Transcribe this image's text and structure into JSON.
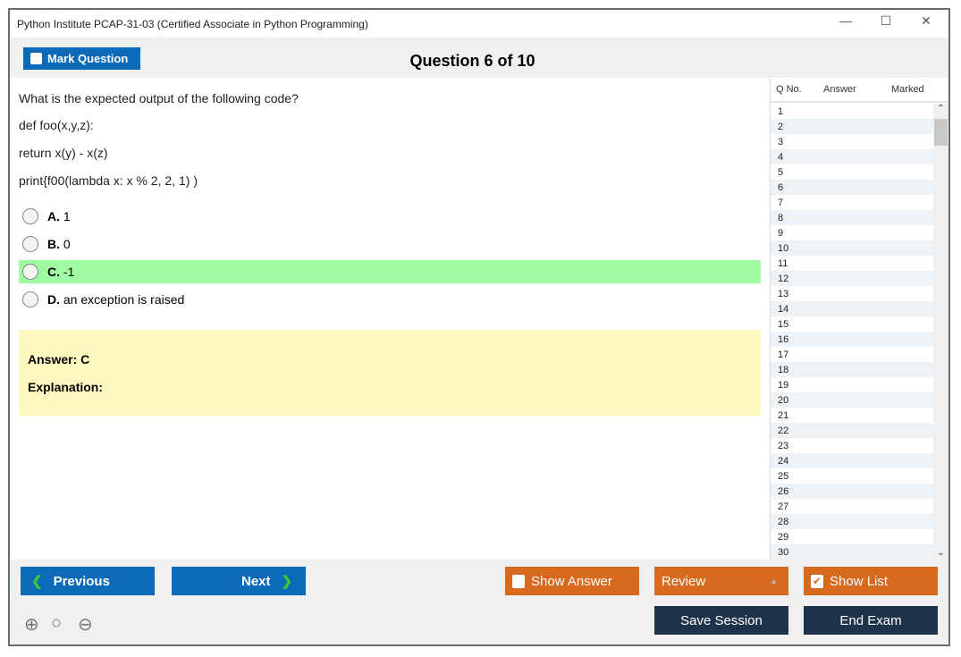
{
  "window": {
    "title": "Python Institute PCAP-31-03 (Certified Associate in Python Programming)",
    "minimize": "—",
    "maximize": "☐",
    "close": "✕"
  },
  "header": {
    "mark_label": "Mark Question",
    "question_counter": "Question 6 of 10"
  },
  "question": {
    "lines": [
      "What is the expected output of the following code?",
      "def foo(x,y,z):",
      "return x(y) - x(z)",
      "print{f00(lambda x: x % 2, 2, 1) )"
    ],
    "options": [
      {
        "letter": "A.",
        "text": "1"
      },
      {
        "letter": "B.",
        "text": "0"
      },
      {
        "letter": "C.",
        "text": "-1",
        "highlighted": true
      },
      {
        "letter": "D.",
        "text": "an exception is raised"
      }
    ]
  },
  "answer": {
    "answer_label": "Answer: C",
    "explanation_label": "Explanation:"
  },
  "question_list": {
    "headers": [
      "Q No.",
      "Answer",
      "Marked"
    ],
    "rows": [
      "1",
      "2",
      "3",
      "4",
      "5",
      "6",
      "7",
      "8",
      "9",
      "10",
      "11",
      "12",
      "13",
      "14",
      "15",
      "16",
      "17",
      "18",
      "19",
      "20",
      "21",
      "22",
      "23",
      "24",
      "25",
      "26",
      "27",
      "28",
      "29",
      "30"
    ]
  },
  "footer": {
    "previous": "Previous",
    "next": "Next",
    "show_answer": "Show Answer",
    "review": "Review",
    "show_list": "Show List",
    "show_list_checked": true,
    "show_answer_checked": false,
    "save_session": "Save Session",
    "end_exam": "End Exam"
  },
  "colors": {
    "primary": "#0d6ab8",
    "orange": "#d86a20",
    "navy": "#1c3349",
    "highlight": "#a0fca0",
    "answer_bg": "#fdf8c0"
  }
}
